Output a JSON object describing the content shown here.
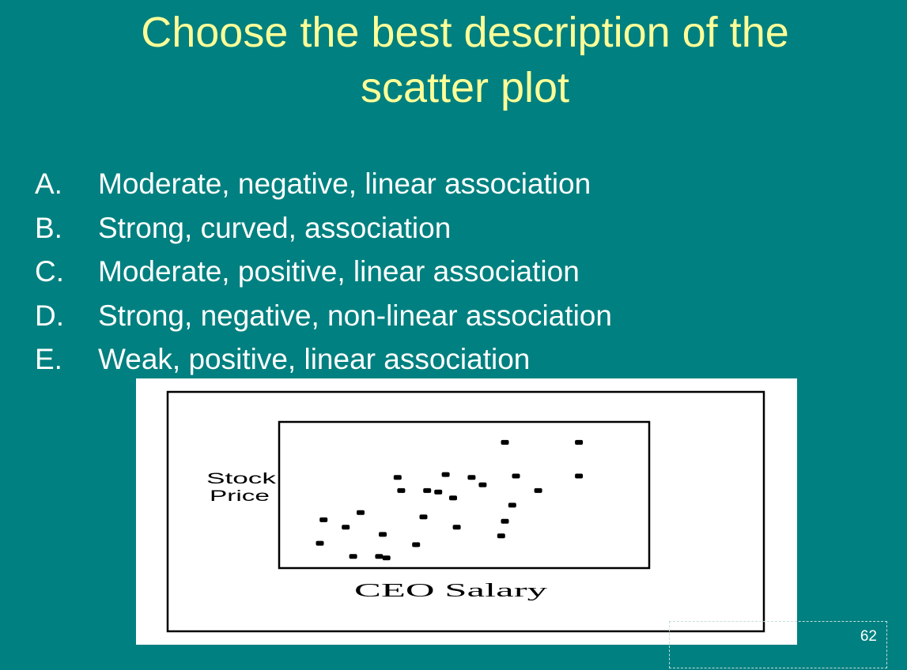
{
  "slide": {
    "title_line1": "Choose the best description of the",
    "title_line2": "scatter plot",
    "number": "62"
  },
  "choices": [
    {
      "letter": "A.",
      "text": "Moderate, negative, linear association"
    },
    {
      "letter": "B.",
      "text": "Strong, curved, association"
    },
    {
      "letter": "C.",
      "text": "Moderate, positive, linear association"
    },
    {
      "letter": "D.",
      "text": "Strong, negative, non-linear association"
    },
    {
      "letter": "E.",
      "text": "Weak, positive, linear association"
    }
  ],
  "colors": {
    "background": "#008080",
    "title": "#FFFF99",
    "text": "#FFFFFF"
  },
  "chart_data": {
    "type": "scatter",
    "xlabel": "CEO Salary",
    "ylabel_line1": "Stock",
    "ylabel_line2": "Price",
    "xlim": [
      0,
      100
    ],
    "ylim": [
      0,
      100
    ],
    "grid": false,
    "x": [
      11,
      12,
      18,
      20,
      22,
      27,
      28,
      29,
      32,
      33,
      37,
      39,
      40,
      43,
      45,
      47,
      48,
      52,
      55,
      60,
      61,
      61,
      63,
      64,
      70,
      81,
      81
    ],
    "y": [
      17,
      33,
      28,
      8,
      38,
      8,
      23,
      7,
      62,
      53,
      16,
      35,
      53,
      52,
      64,
      48,
      28,
      62,
      57,
      22,
      86,
      32,
      43,
      63,
      53,
      86,
      63
    ]
  }
}
